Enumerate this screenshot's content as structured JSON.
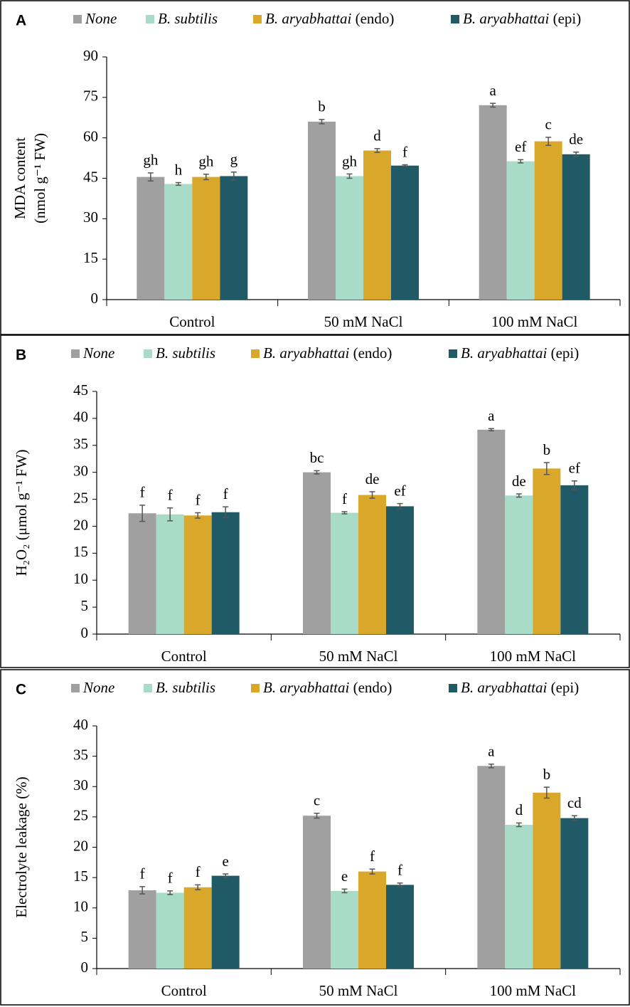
{
  "chart_data": [
    {
      "type": "bar",
      "panel_label": "A",
      "ylabel": [
        "MDA content",
        "(nmol g⁻¹ FW)"
      ],
      "categories": [
        "Control",
        "50 mM NaCl",
        "100 mM NaCl"
      ],
      "series": [
        {
          "name": "None",
          "color": "#a0a0a0",
          "values": [
            45.5,
            66,
            72.1
          ],
          "errors": [
            1.5,
            0.8,
            0.7
          ],
          "letters": [
            "gh",
            "b",
            "a"
          ]
        },
        {
          "name": "B. subtilis",
          "color": "#a8dcc8",
          "values": [
            42.9,
            45.8,
            51.3
          ],
          "errors": [
            0.5,
            0.8,
            0.6
          ],
          "letters": [
            "h",
            "gh",
            "ef"
          ]
        },
        {
          "name": "B. aryabhattai (endo)",
          "color": "#d9a82a",
          "values": [
            45.5,
            55.3,
            58.7
          ],
          "errors": [
            1,
            0.7,
            1.5
          ],
          "letters": [
            "gh",
            "d",
            "c"
          ]
        },
        {
          "name": "B. aryabhattai (epi)",
          "color": "#1f5a66",
          "values": [
            45.8,
            49.7,
            53.9
          ],
          "errors": [
            1.5,
            0.3,
            0.8
          ],
          "letters": [
            "g",
            "f",
            "de"
          ]
        }
      ],
      "ylim": [
        0,
        90
      ],
      "yticks": [
        0,
        15,
        30,
        45,
        60,
        75,
        90
      ]
    },
    {
      "type": "bar",
      "panel_label": "B",
      "ylabel": [
        "H₂O₂ (μmol g⁻¹ FW)"
      ],
      "categories": [
        "Control",
        "50 mM NaCl",
        "100 mM NaCl"
      ],
      "series": [
        {
          "name": "None",
          "color": "#a0a0a0",
          "values": [
            22.4,
            30,
            37.9
          ],
          "errors": [
            1.5,
            0.3,
            0.2
          ],
          "letters": [
            "f",
            "bc",
            "a"
          ]
        },
        {
          "name": "B. subtilis",
          "color": "#a8dcc8",
          "values": [
            22.2,
            22.5,
            25.7
          ],
          "errors": [
            1.2,
            0.2,
            0.3
          ],
          "letters": [
            "f",
            "f",
            "de"
          ]
        },
        {
          "name": "B. aryabhattai (endo)",
          "color": "#d9a82a",
          "values": [
            22,
            25.8,
            30.7
          ],
          "errors": [
            0.5,
            0.6,
            1.1
          ],
          "letters": [
            "f",
            "de",
            "b"
          ]
        },
        {
          "name": "B. aryabhattai (epi)",
          "color": "#1f5a66",
          "values": [
            22.6,
            23.7,
            27.6
          ],
          "errors": [
            1,
            0.5,
            0.8
          ],
          "letters": [
            "f",
            "ef",
            "ef"
          ]
        }
      ],
      "ylim": [
        0,
        45
      ],
      "yticks": [
        0,
        5,
        10,
        15,
        20,
        25,
        30,
        35,
        40,
        45
      ]
    },
    {
      "type": "bar",
      "panel_label": "C",
      "ylabel": [
        "Electrolyte leakage (%)"
      ],
      "categories": [
        "Control",
        "50 mM NaCl",
        "100 mM NaCl"
      ],
      "series": [
        {
          "name": "None",
          "color": "#a0a0a0",
          "values": [
            12.9,
            25.2,
            33.4
          ],
          "errors": [
            0.6,
            0.4,
            0.3
          ],
          "letters": [
            "f",
            "c",
            "a"
          ]
        },
        {
          "name": "B. subtilis",
          "color": "#a8dcc8",
          "values": [
            12.5,
            12.8,
            23.7
          ],
          "errors": [
            0.3,
            0.3,
            0.3
          ],
          "letters": [
            "f",
            "e",
            "d"
          ]
        },
        {
          "name": "B. aryabhattai (endo)",
          "color": "#d9a82a",
          "values": [
            13.4,
            16,
            29
          ],
          "errors": [
            0.4,
            0.4,
            0.9
          ],
          "letters": [
            "f",
            "f",
            "b"
          ]
        },
        {
          "name": "B. aryabhattai (epi)",
          "color": "#1f5a66",
          "values": [
            15.3,
            13.8,
            24.8
          ],
          "errors": [
            0.3,
            0.3,
            0.4
          ],
          "letters": [
            "e",
            "f",
            "cd"
          ]
        }
      ],
      "ylim": [
        0,
        40
      ],
      "yticks": [
        0,
        5,
        10,
        15,
        20,
        25,
        30,
        35,
        40
      ]
    }
  ]
}
